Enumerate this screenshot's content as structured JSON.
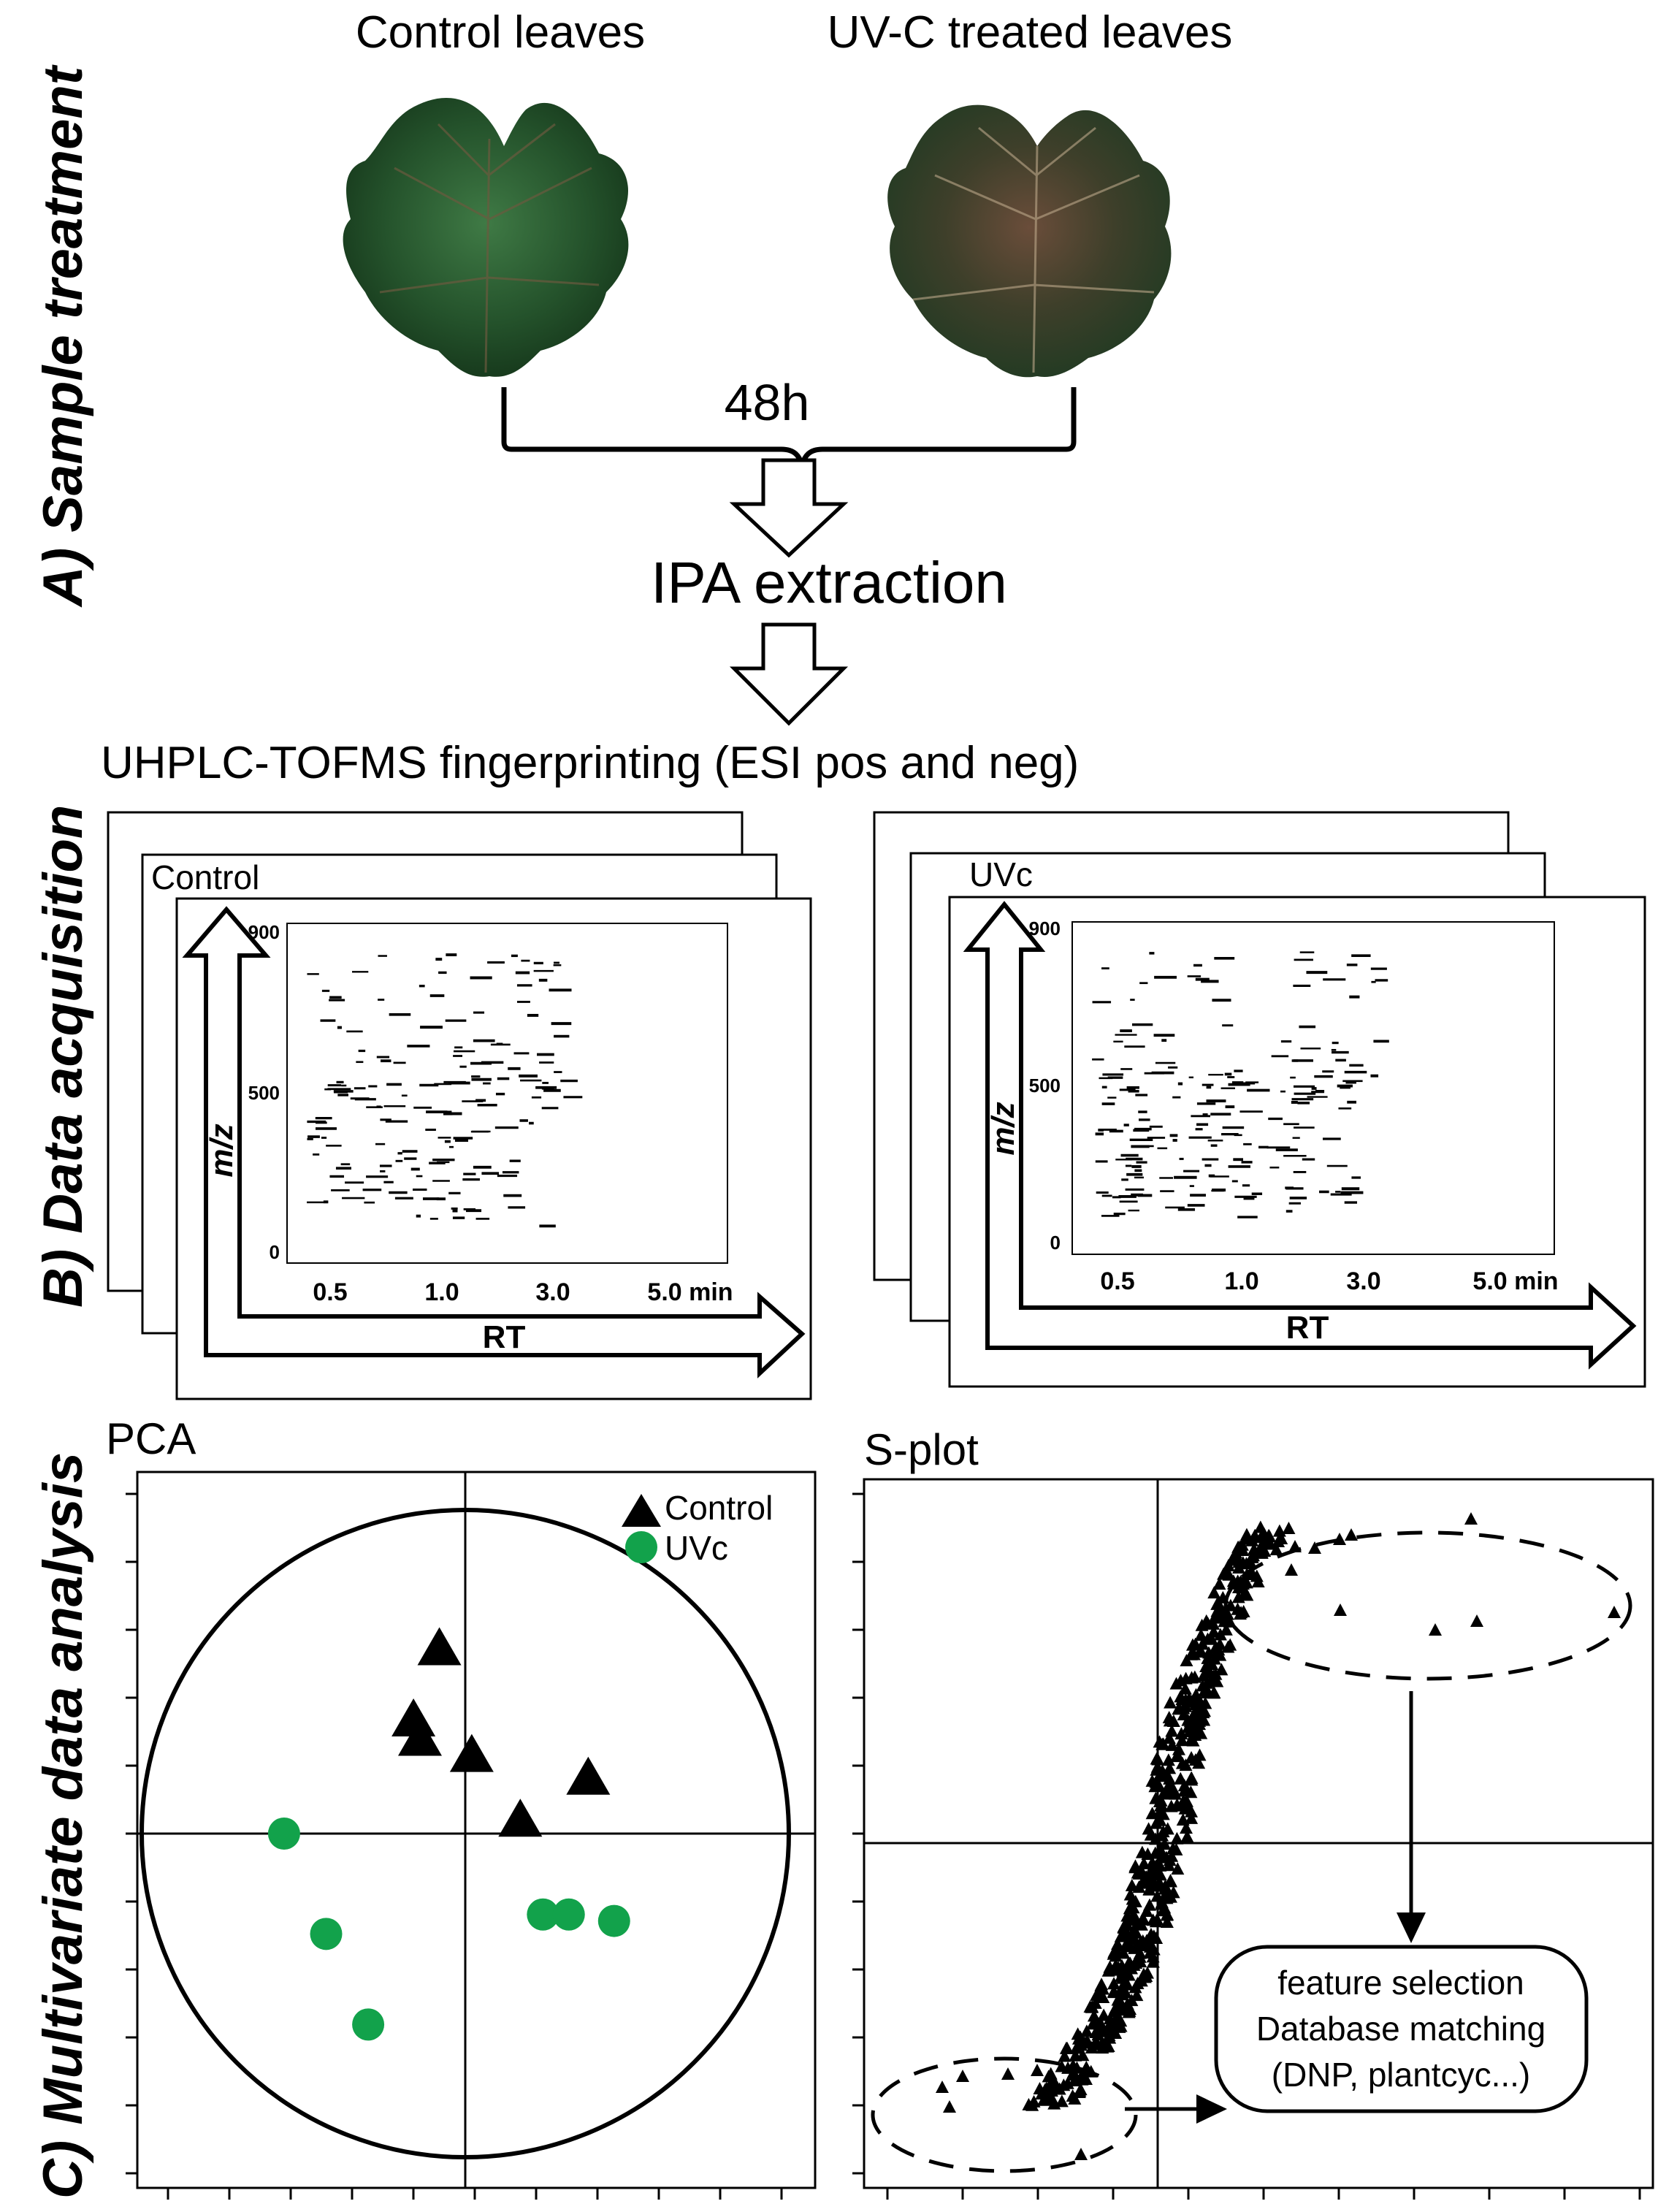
{
  "sections": {
    "a": "A) Sample treatment",
    "b": "B) Data acquisition",
    "c": "C) Multivariate data analysis"
  },
  "treatment": {
    "control_label": "Control leaves",
    "uvc_label": "UV-C treated leaves",
    "time_label": "48h",
    "extraction_label": "IPA extraction"
  },
  "acquisition": {
    "title": "UHPLC-TOFMS fingerprinting (ESI pos and neg)",
    "panels": [
      {
        "label": "Control",
        "y_axis_title": "m/z",
        "x_axis_title": "RT",
        "y_ticks": [
          "900",
          "500",
          "0"
        ],
        "x_ticks": [
          "0.5",
          "1.0",
          "3.0",
          "5.0 min"
        ]
      },
      {
        "label": "UVc",
        "y_axis_title": "m/z",
        "x_axis_title": "RT",
        "y_ticks": [
          "900",
          "500",
          "0"
        ],
        "x_ticks": [
          "0.5",
          "1.0",
          "3.0",
          "5.0 min"
        ]
      }
    ]
  },
  "pca": {
    "title": "PCA",
    "legend": {
      "control": "Control",
      "uvc": "UVc"
    },
    "colors": {
      "control": "#000000",
      "uvc": "#12a24b"
    },
    "control_points": [
      [
        -0.08,
        0.57
      ],
      [
        -0.16,
        0.35
      ],
      [
        -0.14,
        0.29
      ],
      [
        0.02,
        0.24
      ],
      [
        0.38,
        0.17
      ],
      [
        0.17,
        0.04
      ]
    ],
    "uvc_points": [
      [
        -0.56,
        0.0
      ],
      [
        -0.43,
        -0.31
      ],
      [
        -0.3,
        -0.59
      ],
      [
        0.24,
        -0.25
      ],
      [
        0.32,
        -0.25
      ],
      [
        0.46,
        -0.27
      ]
    ]
  },
  "splot": {
    "title": "S-plot",
    "annotation": [
      "feature selection",
      "Database matching",
      "(DNP, plantcyc...)"
    ]
  }
}
